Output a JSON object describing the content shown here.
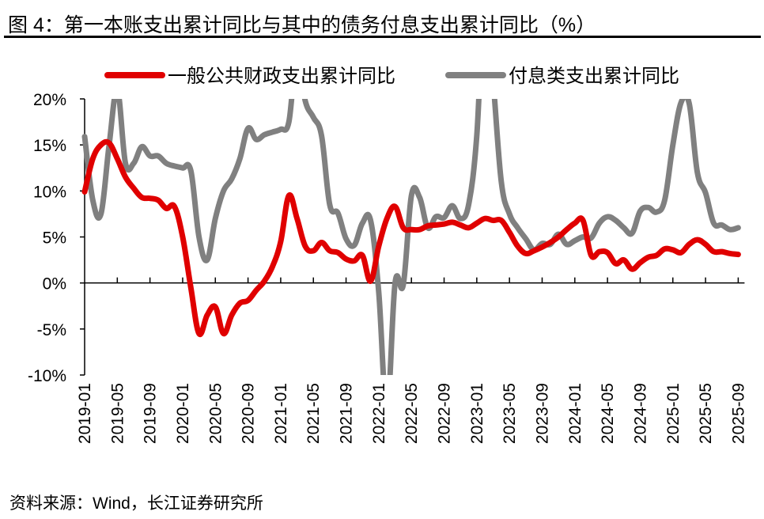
{
  "title": "图 4：第一本账支出累计同比与其中的债务付息支出累计同比（%）",
  "source": "资料来源：Wind，长江证券研究所",
  "chart_data": {
    "type": "line",
    "title": "图 4：第一本账支出累计同比与其中的债务付息支出累计同比（%）",
    "xlabel": "",
    "ylabel": "",
    "ylim": [
      -10,
      20
    ],
    "yticks": [
      -10,
      -5,
      0,
      5,
      10,
      15,
      20
    ],
    "ytick_labels": [
      "-10%",
      "-5%",
      "0%",
      "5%",
      "10%",
      "15%",
      "20%"
    ],
    "x_start": "2019-01",
    "x_end": "2025-09",
    "xtick_labels": [
      "2019-01",
      "2019-05",
      "2019-09",
      "2020-01",
      "2020-05",
      "2020-09",
      "2021-01",
      "2021-05",
      "2021-09",
      "2022-01",
      "2022-05",
      "2022-09",
      "2023-01",
      "2023-05",
      "2023-09",
      "2024-01",
      "2024-05",
      "2024-09",
      "2025-01",
      "2025-05",
      "2025-09"
    ],
    "legend_position": "top",
    "grid": false,
    "series": [
      {
        "name": "一般公共财政支出累计同比",
        "color": "#e00000",
        "values": [
          9.9,
          13.5,
          15.0,
          15.2,
          13.5,
          11.5,
          10.3,
          9.3,
          9.2,
          9.0,
          8.1,
          8.3,
          5.0,
          -0.5,
          -5.5,
          -3.5,
          -2.6,
          -5.5,
          -3.5,
          -2.2,
          -1.9,
          -0.8,
          0.2,
          1.8,
          4.5,
          9.5,
          7.0,
          4.0,
          3.5,
          4.4,
          3.5,
          3.3,
          2.6,
          2.4,
          3.0,
          0.2,
          4.0,
          7.0,
          8.3,
          6.0,
          5.8,
          5.8,
          6.2,
          6.3,
          6.4,
          6.6,
          6.3,
          6.0,
          6.5,
          7.0,
          6.8,
          6.8,
          5.5,
          4.0,
          3.2,
          3.5,
          3.9,
          4.4,
          5.0,
          5.8,
          6.5,
          6.8,
          3.0,
          3.4,
          3.3,
          2.1,
          2.5,
          1.5,
          2.2,
          2.8,
          3.0,
          3.7,
          3.6,
          3.3,
          4.2,
          4.7,
          4.2,
          3.4,
          3.4,
          3.2,
          3.1
        ]
      },
      {
        "name": "付息类支出累计同比",
        "color": "#808080",
        "values": [
          15.9,
          9.0,
          7.5,
          15.0,
          21.0,
          13.0,
          13.0,
          14.8,
          13.8,
          13.8,
          13.0,
          12.7,
          12.5,
          12.2,
          5.0,
          2.5,
          7.0,
          10.0,
          11.3,
          13.5,
          16.8,
          15.6,
          16.1,
          16.4,
          16.7,
          17.5,
          25.0,
          19.8,
          18.0,
          16.0,
          8.5,
          7.6,
          4.8,
          4.1,
          6.5,
          6.8,
          -1.0,
          -14.0,
          0.0,
          -0.2,
          9.5,
          9.3,
          6.0,
          7.2,
          7.1,
          8.4,
          7.0,
          8.5,
          16.0,
          32.0,
          22.0,
          11.0,
          7.5,
          6.0,
          4.8,
          3.6,
          4.3,
          4.2,
          5.3,
          4.2,
          4.6,
          5.0,
          4.9,
          6.5,
          7.2,
          6.8,
          6.0,
          5.4,
          7.8,
          8.2,
          7.7,
          9.0,
          15.0,
          19.6,
          19.5,
          12.0,
          9.8,
          6.5,
          6.3,
          5.8,
          6.0
        ]
      }
    ]
  }
}
